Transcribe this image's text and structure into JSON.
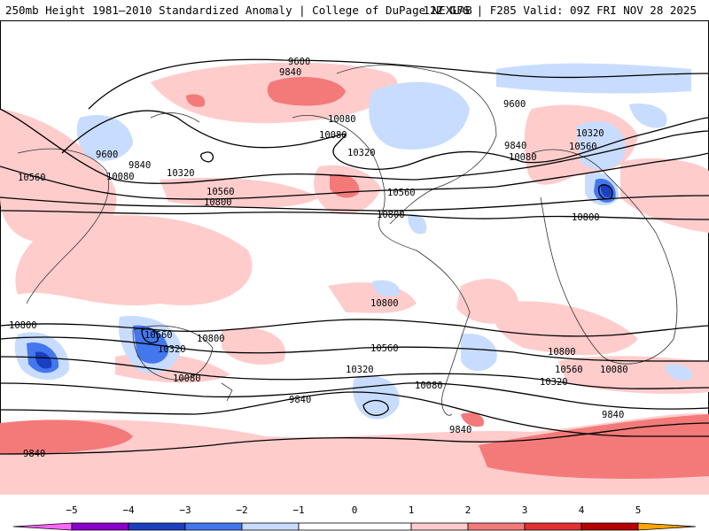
{
  "header": {
    "left_title": "250mb Height 1981–2010 Standardized Anomaly | College of DuPage NEXLAB",
    "right_title": "12Z GFS | F285 Valid: 09Z FRI NOV 28 2025"
  },
  "colors": {
    "neg5": "#ff66ff",
    "neg4": "#8a00cc",
    "neg3": "#1a3fbf",
    "neg2": "#4477ee",
    "neg1": "#c8dcff",
    "zero": "#ffffff",
    "pos1": "#ffcccc",
    "pos2": "#f47a7a",
    "pos3": "#e33030",
    "pos4": "#b80000",
    "pos5": "#ffa500",
    "contour": "#000000",
    "coast": "#333333"
  },
  "colorbar": {
    "ticks": [
      "−5",
      "−4",
      "−3",
      "−2",
      "−1",
      "0",
      "1",
      "2",
      "3",
      "4",
      "5"
    ]
  },
  "contour_labels": [
    "9600",
    "9840",
    "10080",
    "9600",
    "9600",
    "9840",
    "10080",
    "10080",
    "10320",
    "10560",
    "10560",
    "10800",
    "10320",
    "10560",
    "10800",
    "9840",
    "10080",
    "10320",
    "10560",
    "10800",
    "10800",
    "10080",
    "10320",
    "10560",
    "10800",
    "10560",
    "10320",
    "10080",
    "9840",
    "9840",
    "10800",
    "10560",
    "10320",
    "10080",
    "9840",
    "9840",
    "10800"
  ]
}
